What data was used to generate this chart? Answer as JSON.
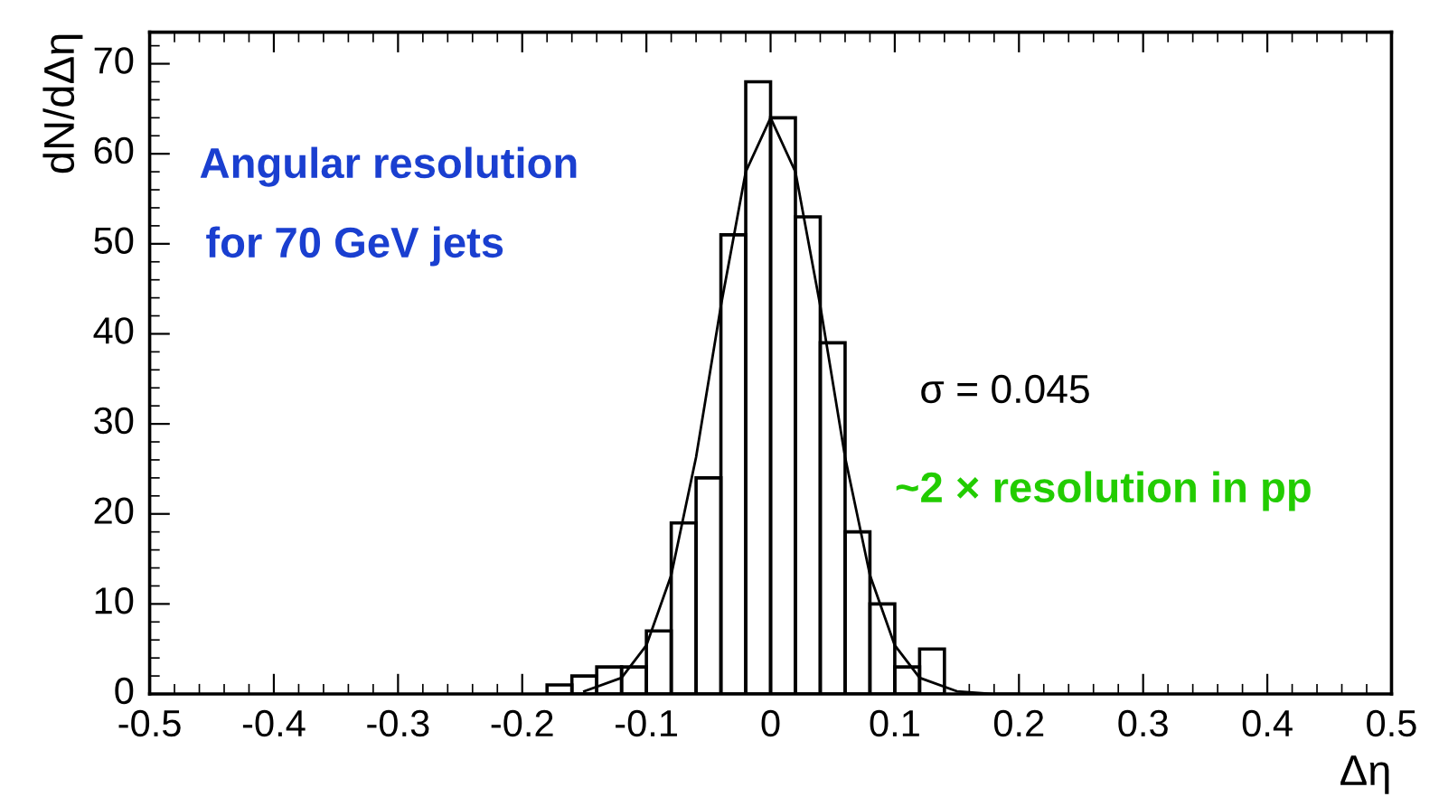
{
  "chart_data": {
    "type": "histogram",
    "xlabel": "Δη",
    "ylabel": "dN/dΔη",
    "bins": [
      -0.18,
      -0.16,
      -0.14,
      -0.12,
      -0.1,
      -0.08,
      -0.06,
      -0.04,
      -0.02,
      0,
      0.02,
      0.04,
      0.06,
      0.08,
      0.1,
      0.12,
      0.14
    ],
    "values": [
      1,
      2,
      3,
      3,
      7,
      19,
      24,
      51,
      68,
      64,
      53,
      39,
      18,
      10,
      3,
      5
    ],
    "color": "#000000",
    "series": [
      {
        "type": "line",
        "color": "#000000",
        "x": [
          -0.15,
          -0.12,
          -0.1,
          -0.08,
          -0.06,
          -0.04,
          -0.02,
          0,
          0.02,
          0.04,
          0.06,
          0.08,
          0.1,
          0.12,
          0.15,
          0.18,
          0.2
        ],
        "values": [
          0.3,
          1.8,
          5.4,
          13.2,
          26.3,
          43.1,
          58,
          64,
          58,
          43.1,
          26.3,
          13.2,
          5.4,
          1.8,
          0.3,
          0,
          0
        ]
      }
    ],
    "xlim": [
      -0.5,
      0.5
    ],
    "ylim": [
      0,
      73.5
    ],
    "xticks": [
      -0.5,
      -0.4,
      -0.3,
      -0.2,
      -0.1,
      {
        "value": 0,
        "label": "0"
      },
      0.1,
      0.2,
      0.3,
      0.4,
      0.5
    ],
    "yticks": [
      0,
      10,
      20,
      30,
      40,
      50,
      60,
      70
    ],
    "grid": false,
    "legend": false,
    "annotations": [
      "Angular resolution",
      "for 70 GeV jets",
      "σ = 0.045",
      "~2 × resolution in pp"
    ]
  }
}
